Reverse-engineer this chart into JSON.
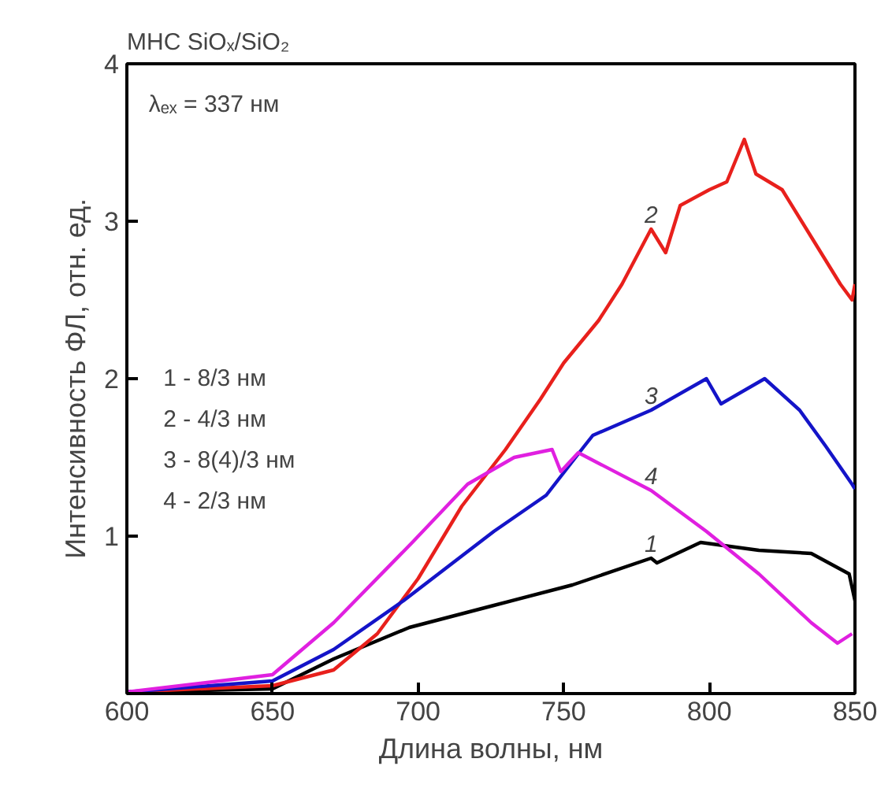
{
  "chart_data": {
    "type": "line",
    "title": "МНС SiOₓ/SiO₂",
    "xlabel": "Длина волны, нм",
    "ylabel": "Интенсивность ФЛ, отн. ед.",
    "xlim": [
      600,
      850
    ],
    "ylim": [
      0,
      4
    ],
    "xticks": [
      600,
      650,
      700,
      750,
      800,
      850
    ],
    "yticks": [
      1,
      2,
      3,
      4
    ],
    "grid": false,
    "marker": "none",
    "line_style": "solid",
    "series": [
      {
        "name": "1",
        "color": "#000000",
        "x": [
          600,
          650,
          671,
          697,
          726,
          753,
          780,
          782,
          797,
          817,
          835,
          848,
          850
        ],
        "values": [
          0.01,
          0.03,
          0.22,
          0.42,
          0.56,
          0.69,
          0.86,
          0.83,
          0.96,
          0.91,
          0.89,
          0.76,
          0.59
        ]
      },
      {
        "name": "2",
        "color": "#e8201c",
        "x": [
          600,
          650,
          671,
          686,
          700,
          715,
          730,
          742,
          750,
          762,
          770,
          780,
          785,
          790,
          800,
          806,
          812,
          816,
          825,
          835,
          845,
          849,
          850
        ],
        "values": [
          0.01,
          0.05,
          0.15,
          0.38,
          0.73,
          1.19,
          1.55,
          1.87,
          2.1,
          2.37,
          2.6,
          2.95,
          2.8,
          3.1,
          3.2,
          3.25,
          3.52,
          3.3,
          3.2,
          2.9,
          2.6,
          2.5,
          2.6
        ]
      },
      {
        "name": "3",
        "color": "#1414c8",
        "x": [
          600,
          650,
          671,
          695,
          726,
          744,
          757,
          760,
          780,
          799,
          804,
          819,
          831,
          840,
          849,
          850
        ],
        "values": [
          0.01,
          0.08,
          0.28,
          0.59,
          1.03,
          1.26,
          1.57,
          1.64,
          1.8,
          2.0,
          1.84,
          2.0,
          1.8,
          1.57,
          1.33,
          1.3
        ]
      },
      {
        "name": "4",
        "color": "#e020e0",
        "x": [
          600,
          650,
          671,
          698,
          717,
          733,
          746,
          749,
          755,
          780,
          799,
          817,
          835,
          844,
          849
        ],
        "values": [
          0.01,
          0.12,
          0.45,
          0.96,
          1.33,
          1.5,
          1.55,
          1.41,
          1.53,
          1.29,
          1.03,
          0.76,
          0.45,
          0.32,
          0.38
        ]
      }
    ],
    "annotations": [
      "λₑₓ = 337 нм",
      "1 - 8/3 нм",
      "2 - 4/3 нм",
      "3 - 8(4)/3 нм",
      "4 - 2/3 нм"
    ]
  }
}
